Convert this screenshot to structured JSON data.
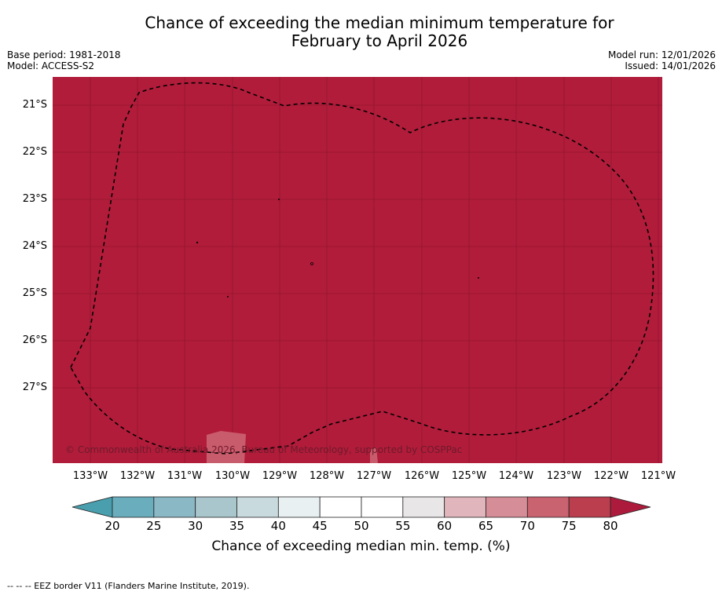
{
  "title": {
    "line1": "Chance of exceeding the median minimum temperature for",
    "line2": "February to April 2026"
  },
  "meta": {
    "base_period": "Base period: 1981-2018",
    "model": "Model: ACCESS-S2",
    "model_run": "Model run: 12/01/2026",
    "issued": "Issued: 14/01/2026"
  },
  "map": {
    "fill_color": "#b11c3a",
    "copyright": "© Commonwealth of Australia 2026, Bureau of Meteorology, supported by COSPPac",
    "lat_labels": [
      "21°S",
      "22°S",
      "23°S",
      "24°S",
      "25°S",
      "26°S",
      "27°S"
    ],
    "lon_labels": [
      "133°W",
      "132°W",
      "131°W",
      "130°W",
      "129°W",
      "128°W",
      "127°W",
      "126°W",
      "125°W",
      "124°W",
      "123°W",
      "122°W",
      "121°W"
    ]
  },
  "colorbar": {
    "ticks": [
      "20",
      "25",
      "30",
      "35",
      "40",
      "45",
      "50",
      "55",
      "60",
      "65",
      "70",
      "75",
      "80"
    ],
    "colors": [
      "#6aaebd",
      "#8ab8c4",
      "#a9c6cc",
      "#c8dadd",
      "#e8f0f2",
      "#ffffff",
      "#ffffff",
      "#e8e6e6",
      "#e0b6bc",
      "#d58e98",
      "#c96370",
      "#bb3e4e"
    ],
    "under_color": "#4a9fae",
    "over_color": "#ad1b3c",
    "label": "Chance of exceeding median min. temp. (%)"
  },
  "footer": "-- -- -- EEZ border V11 (Flanders Marine Institute, 2019)."
}
